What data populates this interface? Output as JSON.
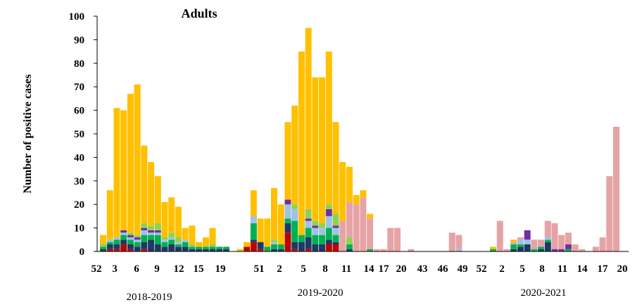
{
  "chart_data": {
    "type": "bar",
    "title": "Adults",
    "xlabel": "",
    "ylabel": "Number of positive cases",
    "ylim": [
      0,
      100
    ],
    "yticks": [
      0,
      10,
      20,
      30,
      40,
      50,
      60,
      70,
      80,
      90,
      100
    ],
    "stacked": true,
    "grid": false,
    "legend": "none",
    "colors": {
      "dominant": "#ffc000",
      "secondary": "#e6a3a6",
      "segments": [
        "#c00000",
        "#1f3864",
        "#00b050",
        "#9dc3e6",
        "#7030a0",
        "#92d050"
      ]
    },
    "x_tick_labels": [
      "52",
      "3",
      "6",
      "9",
      "12",
      "15",
      "19",
      "51",
      "2",
      "5",
      "8",
      "11",
      "14",
      "17",
      "20",
      "43",
      "46",
      "49",
      "52",
      "2",
      "5",
      "8",
      "11",
      "14",
      "17",
      "20"
    ],
    "season_labels": [
      "2018-2019",
      "2019-2020",
      "2020-2021"
    ],
    "bars": [
      {
        "x": "52",
        "total": 7,
        "yellow": 4,
        "segments": [
          0,
          1,
          1,
          0,
          0,
          1
        ]
      },
      {
        "x": "2",
        "total": 26,
        "yellow": 21,
        "segments": [
          1,
          2,
          1,
          1,
          0,
          0
        ]
      },
      {
        "x": "3",
        "total": 61,
        "yellow": 55,
        "segments": [
          1,
          2,
          2,
          1,
          0,
          0
        ]
      },
      {
        "x": "4",
        "total": 60,
        "yellow": 51,
        "segments": [
          3,
          2,
          2,
          1,
          1,
          0
        ]
      },
      {
        "x": "5",
        "total": 67,
        "yellow": 59,
        "segments": [
          1,
          2,
          2,
          1,
          1,
          1
        ]
      },
      {
        "x": "6",
        "total": 71,
        "yellow": 64,
        "segments": [
          0,
          2,
          2,
          1,
          1,
          1
        ]
      },
      {
        "x": "7",
        "total": 45,
        "yellow": 33,
        "segments": [
          1,
          3,
          3,
          2,
          1,
          2
        ]
      },
      {
        "x": "8",
        "total": 38,
        "yellow": 27,
        "segments": [
          0,
          5,
          2,
          1,
          1,
          2
        ]
      },
      {
        "x": "9",
        "total": 32,
        "yellow": 20,
        "segments": [
          0,
          3,
          4,
          1,
          1,
          3
        ]
      },
      {
        "x": "10",
        "total": 21,
        "yellow": 15,
        "segments": [
          0,
          2,
          2,
          1,
          0,
          1
        ]
      },
      {
        "x": "11",
        "total": 23,
        "yellow": 15,
        "segments": [
          0,
          3,
          2,
          1,
          0,
          2
        ]
      },
      {
        "x": "12",
        "total": 19,
        "yellow": 13,
        "segments": [
          0,
          2,
          1,
          1,
          0,
          2
        ]
      },
      {
        "x": "13",
        "total": 10,
        "yellow": 5,
        "segments": [
          0,
          2,
          2,
          1,
          0,
          0
        ]
      },
      {
        "x": "14",
        "total": 11,
        "yellow": 8,
        "segments": [
          0,
          1,
          1,
          0,
          0,
          1
        ]
      },
      {
        "x": "15",
        "total": 4,
        "yellow": 2,
        "segments": [
          0,
          1,
          1,
          0,
          0,
          0
        ]
      },
      {
        "x": "16",
        "total": 6,
        "yellow": 4,
        "segments": [
          0,
          1,
          1,
          0,
          0,
          0
        ]
      },
      {
        "x": "17",
        "total": 10,
        "yellow": 7,
        "segments": [
          0,
          1,
          1,
          0,
          0,
          1
        ]
      },
      {
        "x": "18",
        "total": 2,
        "yellow": 0,
        "segments": [
          0,
          1,
          1,
          0,
          0,
          0
        ]
      },
      {
        "x": "19",
        "total": 2,
        "yellow": 0,
        "segments": [
          0,
          1,
          1,
          0,
          0,
          0
        ]
      },
      {
        "x": "",
        "total": 0,
        "yellow": 0,
        "segments": [
          0,
          0,
          0,
          0,
          0,
          0
        ]
      },
      {
        "x": "49",
        "total": 1,
        "yellow": 1,
        "segments": [
          0,
          0,
          0,
          0,
          0,
          0
        ]
      },
      {
        "x": "50",
        "total": 4,
        "yellow": 2,
        "segments": [
          2,
          0,
          0,
          0,
          0,
          0
        ]
      },
      {
        "x": "51",
        "total": 26,
        "yellow": 11,
        "segments": [
          4,
          1,
          7,
          3,
          0,
          0
        ]
      },
      {
        "x": "52",
        "total": 14,
        "yellow": 10,
        "segments": [
          1,
          3,
          0,
          0,
          0,
          0
        ]
      },
      {
        "x": "1",
        "total": 14,
        "yellow": 12,
        "segments": [
          0,
          0,
          2,
          0,
          0,
          0
        ]
      },
      {
        "x": "2",
        "total": 27,
        "yellow": 22,
        "segments": [
          0,
          1,
          2,
          1,
          0,
          1
        ]
      },
      {
        "x": "3",
        "total": 20,
        "yellow": 17,
        "segments": [
          0,
          1,
          2,
          0,
          0,
          0
        ]
      },
      {
        "x": "4",
        "total": 55,
        "yellow": 33,
        "segments": [
          8,
          4,
          2,
          6,
          2,
          0
        ]
      },
      {
        "x": "5",
        "total": 62,
        "yellow": 42,
        "segments": [
          1,
          3,
          9,
          5,
          0,
          2
        ]
      },
      {
        "x": "6",
        "total": 85,
        "yellow": 78,
        "segments": [
          0,
          4,
          3,
          0,
          0,
          0
        ]
      },
      {
        "x": "7",
        "total": 95,
        "yellow": 77,
        "segments": [
          1,
          5,
          4,
          3,
          1,
          4
        ]
      },
      {
        "x": "8",
        "total": 74,
        "yellow": 61,
        "segments": [
          0,
          3,
          4,
          3,
          1,
          2
        ]
      },
      {
        "x": "9",
        "total": 74,
        "yellow": 62,
        "segments": [
          0,
          3,
          4,
          3,
          0,
          2
        ]
      },
      {
        "x": "10",
        "total": 85,
        "yellow": 65,
        "segments": [
          3,
          2,
          5,
          5,
          3,
          2
        ]
      },
      {
        "x": "11",
        "total": 55,
        "yellow": 39,
        "segments": [
          3,
          1,
          3,
          3,
          1,
          5
        ]
      },
      {
        "x": "12",
        "total": 38,
        "yellow": 25,
        "segments": [
          0,
          0,
          0,
          0,
          0,
          0
        ],
        "pink": 13
      },
      {
        "x": "13",
        "total": 36,
        "yellow": 15,
        "segments": [
          0,
          1,
          2,
          0,
          0,
          3
        ],
        "pink": 15
      },
      {
        "x": "14",
        "total": 24,
        "yellow": 4,
        "segments": [
          0,
          0,
          0,
          0,
          0,
          0
        ],
        "pink": 20
      },
      {
        "x": "15",
        "total": 26,
        "yellow": 3,
        "segments": [
          0,
          0,
          0,
          0,
          0,
          0
        ],
        "pink": 23
      },
      {
        "x": "16",
        "total": 16,
        "yellow": 2,
        "segments": [
          0,
          0,
          1,
          0,
          0,
          0
        ],
        "pink": 13
      },
      {
        "x": "17",
        "total": 1,
        "yellow": 0,
        "segments": [
          0,
          0,
          0,
          0,
          0,
          0
        ],
        "pink": 1
      },
      {
        "x": "18",
        "total": 1,
        "yellow": 0,
        "segments": [
          0,
          0,
          0,
          0,
          0,
          0
        ],
        "pink": 1
      },
      {
        "x": "19",
        "total": 10,
        "yellow": 0,
        "segments": [
          0,
          0,
          0,
          0,
          0,
          0
        ],
        "pink": 10
      },
      {
        "x": "20",
        "total": 10,
        "yellow": 0,
        "segments": [
          0,
          0,
          0,
          0,
          0,
          0
        ],
        "pink": 10
      },
      {
        "x": "42",
        "total": 0,
        "yellow": 0,
        "segments": [
          0,
          0,
          0,
          0,
          0,
          0
        ]
      },
      {
        "x": "43",
        "total": 1,
        "yellow": 0,
        "segments": [
          0,
          0,
          0,
          0,
          0,
          0
        ],
        "pink": 1
      },
      {
        "x": "44",
        "total": 0,
        "yellow": 0,
        "segments": [
          0,
          0,
          0,
          0,
          0,
          0
        ]
      },
      {
        "x": "45",
        "total": 0,
        "yellow": 0,
        "segments": [
          0,
          0,
          0,
          0,
          0,
          0
        ]
      },
      {
        "x": "46",
        "total": 0,
        "yellow": 0,
        "segments": [
          0,
          0,
          0,
          0,
          0,
          0
        ]
      },
      {
        "x": "47",
        "total": 0,
        "yellow": 0,
        "segments": [
          0,
          0,
          0,
          0,
          0,
          0
        ]
      },
      {
        "x": "48",
        "total": 0,
        "yellow": 0,
        "segments": [
          0,
          0,
          0,
          0,
          0,
          0
        ]
      },
      {
        "x": "49",
        "total": 8,
        "yellow": 0,
        "segments": [
          0,
          0,
          0,
          0,
          0,
          0
        ],
        "pink": 8
      },
      {
        "x": "50",
        "total": 7,
        "yellow": 0,
        "segments": [
          0,
          0,
          0,
          1,
          0,
          0
        ],
        "pink": 6
      },
      {
        "x": "51",
        "total": 0,
        "yellow": 0,
        "segments": [
          0,
          0,
          0,
          0,
          0,
          0
        ]
      },
      {
        "x": "52",
        "total": 0,
        "yellow": 0,
        "segments": [
          0,
          0,
          0,
          0,
          0,
          0
        ]
      },
      {
        "x": "53",
        "total": 0,
        "yellow": 0,
        "segments": [
          0,
          0,
          0,
          0,
          0,
          0
        ]
      },
      {
        "x": "1",
        "total": 0,
        "yellow": 0,
        "segments": [
          0,
          0,
          0,
          0,
          0,
          0
        ]
      },
      {
        "x": "2",
        "total": 2,
        "yellow": 1,
        "segments": [
          0,
          0,
          1,
          0,
          0,
          0
        ]
      },
      {
        "x": "3",
        "total": 13,
        "yellow": 0,
        "segments": [
          0,
          0,
          0,
          0,
          0,
          0
        ],
        "pink": 13
      },
      {
        "x": "4",
        "total": 1,
        "yellow": 0,
        "segments": [
          0,
          0,
          0,
          0,
          0,
          0
        ],
        "pink": 1
      },
      {
        "x": "5",
        "total": 5,
        "yellow": 1,
        "segments": [
          0,
          1,
          2,
          0,
          0,
          0
        ],
        "pink": 1
      },
      {
        "x": "6",
        "total": 6,
        "yellow": 0,
        "segments": [
          0,
          2,
          1,
          2,
          0,
          0
        ],
        "pink": 1
      },
      {
        "x": "7",
        "total": 9,
        "yellow": 0,
        "segments": [
          0,
          3,
          0,
          2,
          4,
          0
        ]
      },
      {
        "x": "8",
        "total": 5,
        "yellow": 0,
        "segments": [
          0,
          0,
          1,
          0,
          0,
          0
        ],
        "pink": 4
      },
      {
        "x": "9",
        "total": 5,
        "yellow": 0,
        "segments": [
          0,
          1,
          1,
          0,
          0,
          0
        ],
        "pink": 3
      },
      {
        "x": "10",
        "total": 13,
        "yellow": 0,
        "segments": [
          0,
          4,
          1,
          1,
          0,
          0
        ],
        "pink": 7
      },
      {
        "x": "11",
        "total": 12,
        "yellow": 0,
        "segments": [
          0,
          0,
          0,
          0,
          1,
          0
        ],
        "pink": 11
      },
      {
        "x": "12",
        "total": 7,
        "yellow": 0,
        "segments": [
          0,
          0,
          0,
          0,
          1,
          0
        ],
        "pink": 6
      },
      {
        "x": "13",
        "total": 8,
        "yellow": 0,
        "segments": [
          0,
          0,
          1,
          0,
          2,
          0
        ],
        "pink": 5
      },
      {
        "x": "14",
        "total": 3,
        "yellow": 0,
        "segments": [
          0,
          0,
          0,
          0,
          0,
          0
        ],
        "pink": 3
      },
      {
        "x": "15",
        "total": 1,
        "yellow": 0,
        "segments": [
          0,
          0,
          0,
          0,
          0,
          0
        ],
        "pink": 1
      },
      {
        "x": "16",
        "total": 0,
        "yellow": 0,
        "segments": [
          0,
          0,
          0,
          0,
          0,
          0
        ]
      },
      {
        "x": "17",
        "total": 2,
        "yellow": 0,
        "segments": [
          0,
          0,
          0,
          0,
          0,
          0
        ],
        "pink": 2
      },
      {
        "x": "18",
        "total": 6,
        "yellow": 0,
        "segments": [
          0,
          0,
          0,
          0,
          0,
          0
        ],
        "pink": 6
      },
      {
        "x": "19",
        "total": 32,
        "yellow": 0,
        "segments": [
          0,
          0,
          0,
          0,
          0,
          0
        ],
        "pink": 32
      },
      {
        "x": "20",
        "total": 53,
        "yellow": 0,
        "segments": [
          0,
          0,
          0,
          0,
          0,
          0
        ],
        "pink": 53
      }
    ]
  }
}
